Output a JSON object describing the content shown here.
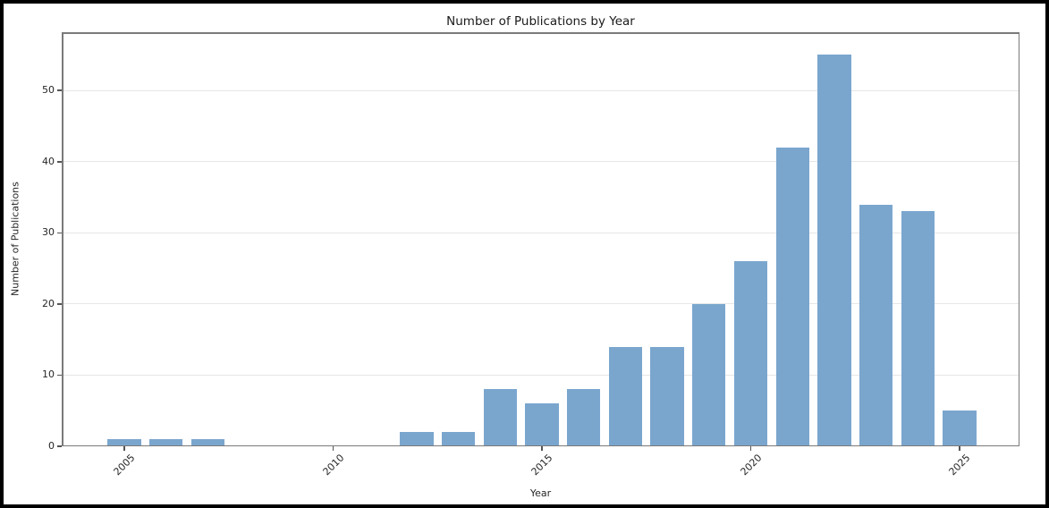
{
  "chart_data": {
    "type": "bar",
    "title": "Number of Publications by Year",
    "xlabel": "Year",
    "ylabel": "Number of Publications",
    "categories": [
      "2005",
      "2006",
      "2007",
      "2008",
      "2009",
      "2010",
      "2011",
      "2012",
      "2013",
      "2014",
      "2015",
      "2016",
      "2017",
      "2018",
      "2019",
      "2020",
      "2021",
      "2022",
      "2023",
      "2024",
      "2025"
    ],
    "values": [
      1,
      1,
      1,
      0,
      0,
      0,
      0,
      2,
      2,
      8,
      6,
      8,
      14,
      14,
      20,
      26,
      42,
      55,
      34,
      33,
      5
    ],
    "xticks": [
      "2005",
      "2010",
      "2015",
      "2020",
      "2025"
    ],
    "yticks": [
      0,
      10,
      20,
      30,
      40,
      50
    ],
    "ylim": [
      0,
      58.2
    ],
    "grid": "y",
    "legend_position": "none",
    "colors": {
      "bar": "#7aa6ce",
      "gridline": "#e6e6e6",
      "axis": "#7a7a7a",
      "text": "#262626",
      "figure_border": "#000000",
      "background": "#ffffff"
    }
  }
}
